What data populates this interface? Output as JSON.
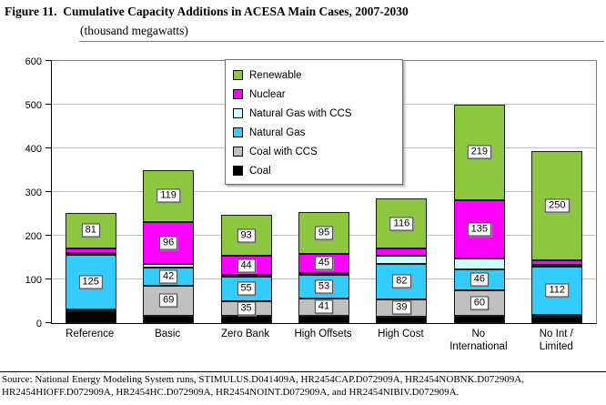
{
  "title": "Figure 11.  Cumulative Capacity Additions in ACESA Main Cases, 2007-2030",
  "subtitle": "(thousand megawatts)",
  "source": {
    "line1": "Source:  National Energy Modeling System runs, STIMULUS.D041409A, HR2454CAP.D072909A, HR2454NOBNK.D072909A,",
    "line2": "HR2454HIOFF.D072909A, HR2454HC.D072909A, HR2454NOINT.D072909A, and HR2454NIBIV.D072909A."
  },
  "chart_data": {
    "type": "bar",
    "stacked": true,
    "title": "Cumulative Capacity Additions in ACESA Main Cases, 2007-2030",
    "ylabel": "thousand megawatts",
    "xlabel": "",
    "grid": true,
    "legend_position": "top-center",
    "ylim": [
      0,
      600
    ],
    "yticks": [
      0,
      100,
      200,
      300,
      400,
      500,
      600
    ],
    "categories": [
      "Reference",
      "Basic",
      "Zero Bank",
      "High Offsets",
      "High Cost",
      "No\nInternational",
      "No Int /\nLimited"
    ],
    "series": [
      {
        "name": "Coal",
        "color": "#000000",
        "values": [
          28,
          17,
          16,
          16,
          15,
          16,
          15
        ],
        "labels": [
          null,
          null,
          null,
          null,
          null,
          null,
          null
        ]
      },
      {
        "name": "Coal with CCS",
        "color": "#c0c0c0",
        "values": [
          3,
          69,
          35,
          41,
          39,
          60,
          3
        ],
        "labels": [
          null,
          "69",
          "35",
          "41",
          "39",
          "60",
          null
        ]
      },
      {
        "name": "Natural Gas",
        "color": "#33ccff",
        "values": [
          125,
          42,
          55,
          53,
          82,
          46,
          112
        ],
        "labels": [
          "125",
          "42",
          "55",
          "53",
          "82",
          "46",
          "112"
        ]
      },
      {
        "name": "Natural Gas with CCS",
        "color": "#ccffff",
        "values": [
          4,
          8,
          4,
          4,
          18,
          25,
          4
        ],
        "labels": [
          null,
          null,
          null,
          null,
          null,
          null,
          null
        ]
      },
      {
        "name": "Nuclear",
        "color": "#ff00ff",
        "values": [
          11,
          96,
          44,
          45,
          16,
          135,
          9
        ],
        "labels": [
          null,
          "96",
          "44",
          "45",
          null,
          "135",
          null
        ]
      },
      {
        "name": "Renewable",
        "color": "#8dc63f",
        "values": [
          81,
          119,
          93,
          95,
          116,
          219,
          250
        ],
        "labels": [
          "81",
          "119",
          "93",
          "95",
          "116",
          "219",
          "250"
        ]
      }
    ]
  }
}
